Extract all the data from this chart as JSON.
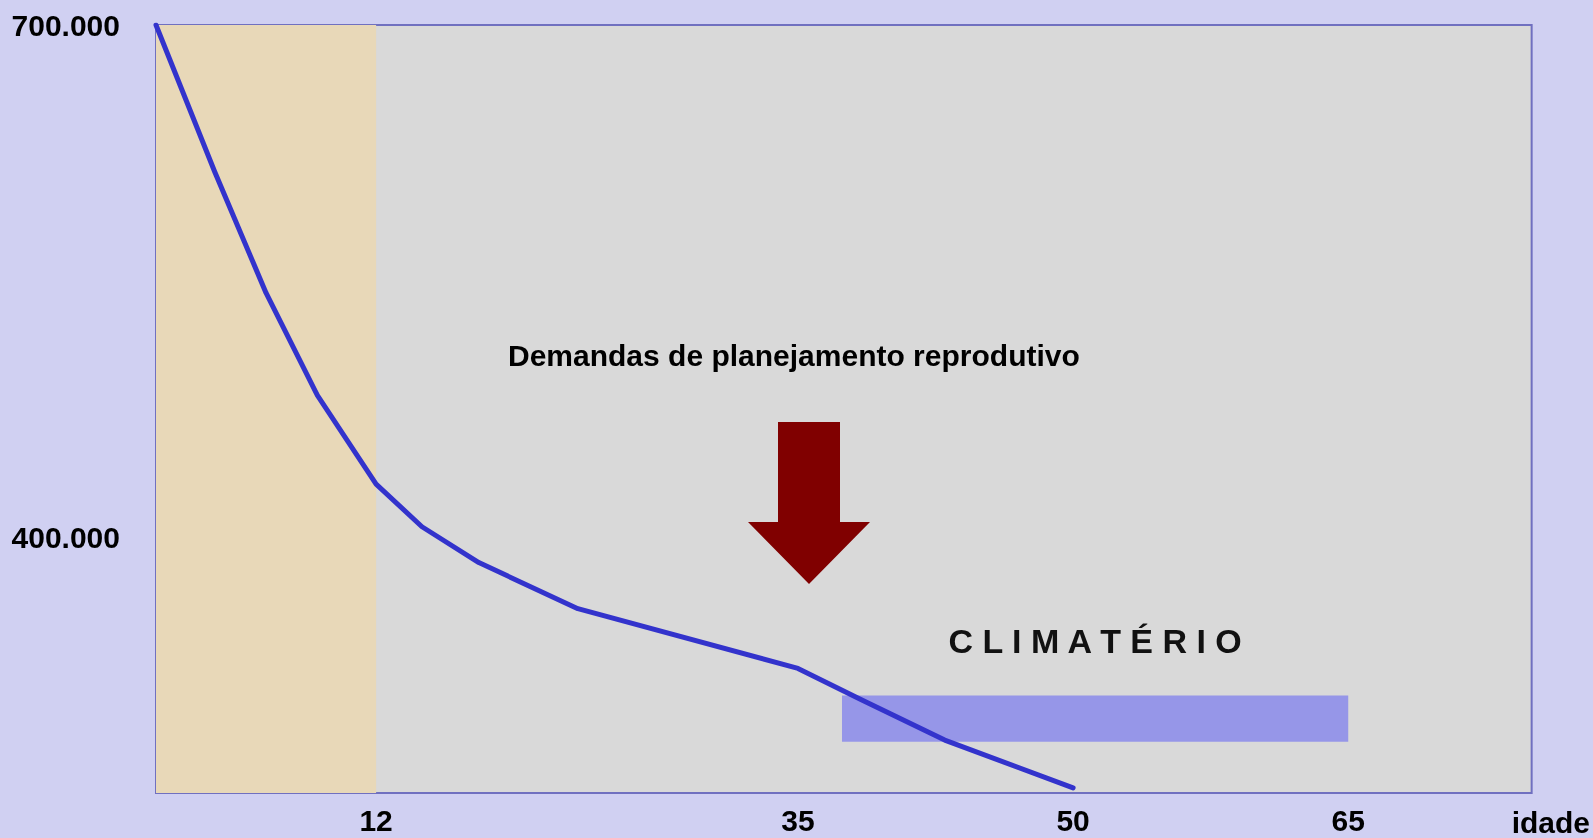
{
  "chart_data": {
    "type": "line",
    "xlabel": "idade",
    "x": [
      0,
      3.2,
      6.0,
      8.8,
      12,
      14.5,
      17.6,
      23.0,
      35,
      38.4,
      43.0,
      50
    ],
    "series": [
      {
        "color": "#3333cc",
        "values": [
          700000,
          614000,
          543000,
          483000,
          431000,
          406000,
          385000,
          358000,
          323000,
          305000,
          281000,
          253000
        ]
      }
    ],
    "xlim": [
      0,
      75
    ],
    "xticks": [
      12,
      35,
      50,
      65
    ],
    "ylim": [
      250000,
      700000
    ],
    "yticks": [
      {
        "value": 400000,
        "label": "400.000"
      },
      {
        "value": 700000,
        "label": "700.000"
      }
    ],
    "bands": [
      {
        "axis": "x",
        "from": 0,
        "to": 12,
        "color": "#e8d8b8"
      },
      {
        "axis": "x",
        "from": 37.4,
        "to": 65,
        "label": "C L I M A T É R I O",
        "color": "#9696e8"
      }
    ],
    "annotations": [
      "Demandas de planejamento reprodutivo"
    ],
    "grid": false,
    "marker": "none",
    "line_style": "solid"
  }
}
